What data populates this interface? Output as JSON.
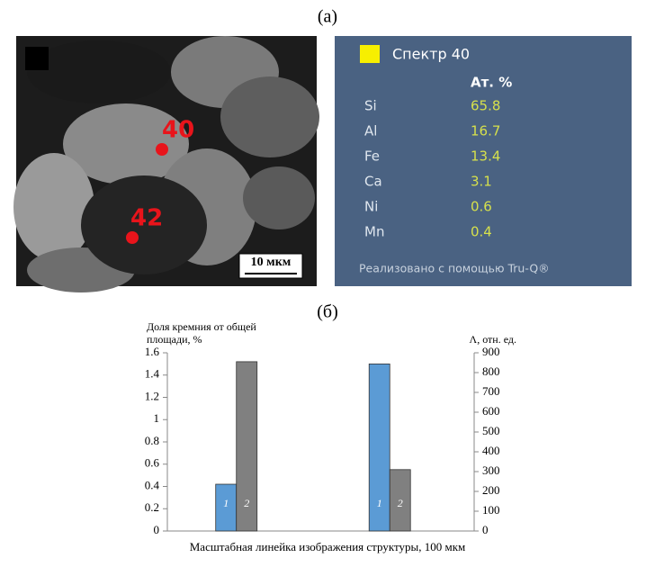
{
  "panel_a_label": "(а)",
  "micrograph": {
    "points": [
      "40",
      "42"
    ],
    "scale_bar": "10 мкм"
  },
  "spectrum": {
    "title": "Спектр 40",
    "header": "Ат. %",
    "rows": [
      [
        "Si",
        65.8
      ],
      [
        "Al",
        16.7
      ],
      [
        "Fe",
        13.4
      ],
      [
        "Ca",
        3.1
      ],
      [
        "Ni",
        0.6
      ],
      [
        "Mn",
        0.4
      ]
    ],
    "footer": "Реализовано с помощью Tru-Q®"
  },
  "panel_b_label": "(б)",
  "chart_data": {
    "type": "bar",
    "y_label": "Доля кремния от общей площади, %",
    "y2_label": "Λ, отн. ед.",
    "x_label": "Масштабная линейка изображения структуры, 100 мкм",
    "categories": [
      null,
      null
    ],
    "series": [
      {
        "name": "1",
        "color": "#5b9bd5",
        "values": [
          0.42,
          1.5
        ]
      },
      {
        "name": "2",
        "color": "#808080",
        "axis": "y2",
        "values": [
          855,
          310
        ]
      }
    ],
    "ylim": [
      0,
      1.6
    ],
    "yticks": [
      0,
      0.2,
      0.4,
      0.6,
      0.8,
      1,
      1.2,
      1.4,
      1.6
    ],
    "y2lim": [
      0,
      900
    ],
    "y2ticks": [
      0,
      100,
      200,
      300,
      400,
      500,
      600,
      700,
      800,
      900
    ],
    "grid": false
  }
}
